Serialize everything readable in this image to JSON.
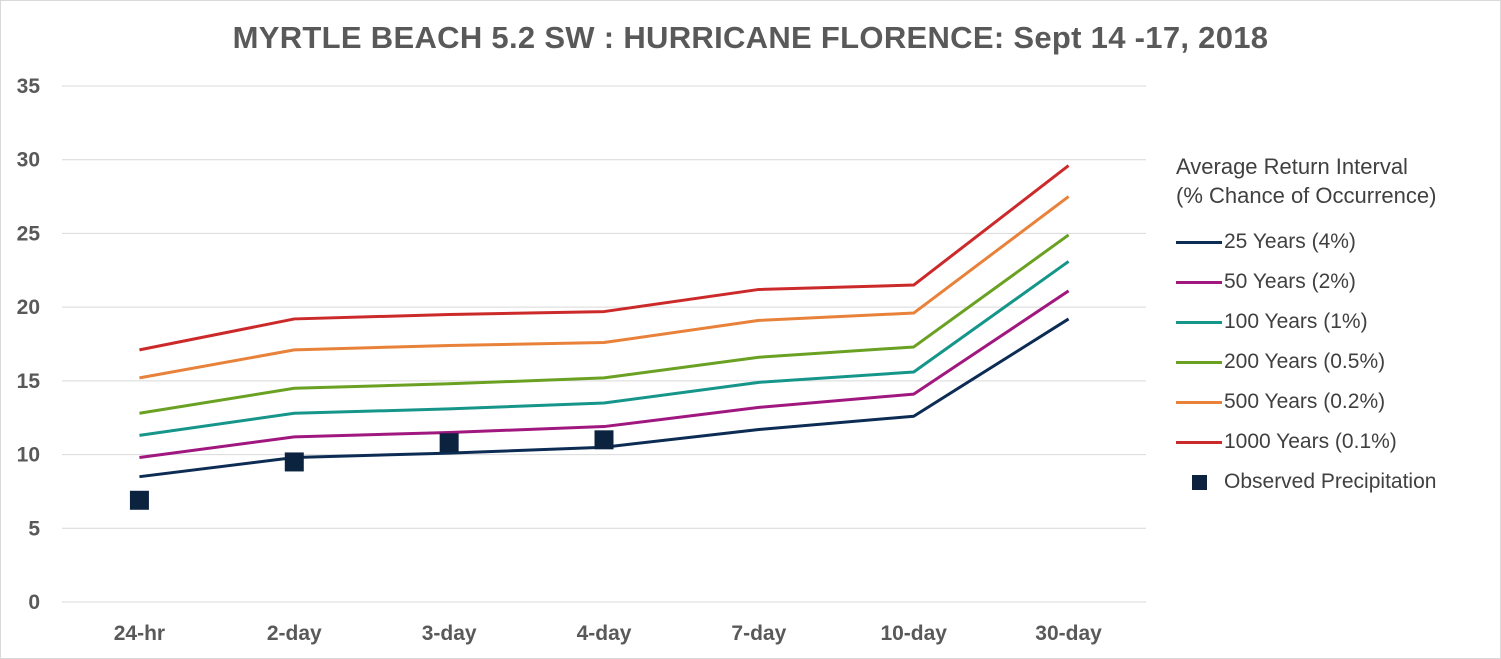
{
  "chart_data": {
    "type": "line",
    "title": "MYRTLE BEACH 5.2 SW : HURRICANE FLORENCE: Sept 14 -17, 2018",
    "categories": [
      "24-hr",
      "2-day",
      "3-day",
      "4-day",
      "7-day",
      "10-day",
      "30-day"
    ],
    "ylim": [
      0,
      35
    ],
    "yticks": [
      0,
      5,
      10,
      15,
      20,
      25,
      30,
      35
    ],
    "grid": true,
    "legend_position": "right",
    "legend_title": [
      "Average Return Interval",
      "(% Chance of Occurrence)"
    ],
    "series": [
      {
        "name": "25 Years (4%)",
        "color": "#0c2c54",
        "values": [
          8.5,
          9.8,
          10.1,
          10.5,
          11.7,
          12.6,
          19.2
        ]
      },
      {
        "name": "50 Years (2%)",
        "color": "#a0177f",
        "values": [
          9.8,
          11.2,
          11.5,
          11.9,
          13.2,
          14.1,
          21.1
        ]
      },
      {
        "name": "100 Years (1%)",
        "color": "#16968a",
        "values": [
          11.3,
          12.8,
          13.1,
          13.5,
          14.9,
          15.6,
          23.1
        ]
      },
      {
        "name": "200 Years (0.5%)",
        "color": "#6aa122",
        "values": [
          12.8,
          14.5,
          14.8,
          15.2,
          16.6,
          17.3,
          24.9
        ]
      },
      {
        "name": "500 Years (0.2%)",
        "color": "#e8823a",
        "values": [
          15.2,
          17.1,
          17.4,
          17.6,
          19.1,
          19.6,
          27.5
        ]
      },
      {
        "name": "1000 Years (0.1%)",
        "color": "#cc2a2a",
        "values": [
          17.1,
          19.2,
          19.5,
          19.7,
          21.2,
          21.5,
          29.6
        ]
      }
    ],
    "observed": {
      "name": "Observed Precipitation",
      "color": "#0c2340",
      "values": [
        6.9,
        9.5,
        10.8,
        11.0,
        null,
        null,
        null
      ]
    }
  }
}
